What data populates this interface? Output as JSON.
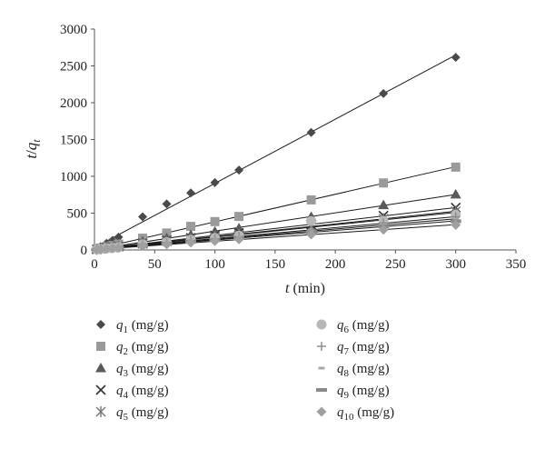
{
  "chart_data": {
    "type": "scatter",
    "title": "",
    "xlabel": {
      "italic": "t",
      "rest": " (min)"
    },
    "ylabel": {
      "main": "t",
      "slash": "/",
      "q": "q",
      "sub": "t"
    },
    "xlim": [
      0,
      350
    ],
    "ylim": [
      0,
      3000
    ],
    "xticks": [
      "0",
      "50",
      "100",
      "150",
      "200",
      "250",
      "300",
      "350"
    ],
    "yticks": [
      "0",
      "500",
      "1000",
      "1500",
      "2000",
      "2500",
      "3000"
    ],
    "grid": false,
    "legend_position": "bottom",
    "x": [
      2,
      5,
      10,
      15,
      20,
      40,
      60,
      80,
      100,
      120,
      180,
      240,
      300
    ],
    "series": [
      {
        "name": "q1 (mg/g)",
        "q": "q",
        "sub": "1",
        "unit": " (mg/g)",
        "marker": "diamond",
        "color": "#4a4a4a",
        "values": [
          18,
          45,
          90,
          130,
          175,
          450,
          625,
          775,
          915,
          1085,
          1595,
          2125,
          2615
        ]
      },
      {
        "name": "q2 (mg/g)",
        "q": "q",
        "sub": "2",
        "unit": " (mg/g)",
        "marker": "square",
        "color": "#9a9a9a",
        "values": [
          12,
          25,
          45,
          60,
          80,
          160,
          230,
          320,
          385,
          455,
          680,
          910,
          1125
        ]
      },
      {
        "name": "q3 (mg/g)",
        "q": "q",
        "sub": "3",
        "unit": " (mg/g)",
        "marker": "triangle",
        "color": "#5a5a5a",
        "values": [
          10,
          20,
          35,
          45,
          55,
          115,
          160,
          205,
          250,
          295,
          450,
          610,
          755
        ]
      },
      {
        "name": "q4 (mg/g)",
        "q": "q",
        "sub": "4",
        "unit": " (mg/g)",
        "marker": "x",
        "color": "#333333",
        "values": [
          8,
          16,
          28,
          38,
          48,
          90,
          130,
          165,
          195,
          230,
          345,
          465,
          575
        ]
      },
      {
        "name": "q5 (mg/g)",
        "q": "q",
        "sub": "5",
        "unit": " (mg/g)",
        "marker": "asterisk",
        "color": "#777777",
        "values": [
          7,
          14,
          25,
          34,
          43,
          82,
          118,
          150,
          178,
          212,
          318,
          425,
          525
        ]
      },
      {
        "name": "q6 (mg/g)",
        "q": "q",
        "sub": "6",
        "unit": " (mg/g)",
        "marker": "circle",
        "color": "#b8b8b8",
        "values": [
          6,
          12,
          22,
          30,
          38,
          75,
          105,
          138,
          163,
          195,
          390,
          395,
          480
        ]
      },
      {
        "name": "q7 (mg/g)",
        "q": "q",
        "sub": "7",
        "unit": " (mg/g)",
        "marker": "plus",
        "color": "#888888",
        "values": [
          6,
          11,
          20,
          28,
          35,
          70,
          98,
          128,
          152,
          182,
          275,
          365,
          450
        ]
      },
      {
        "name": "q8 (mg/g)",
        "q": "q",
        "sub": "8",
        "unit": " (mg/g)",
        "marker": "dash",
        "color": "#a8a8a8",
        "values": [
          5,
          10,
          18,
          26,
          33,
          65,
          92,
          120,
          143,
          170,
          258,
          342,
          420
        ]
      },
      {
        "name": "q9 (mg/g)",
        "q": "q",
        "sub": "9",
        "unit": " (mg/g)",
        "marker": "bar",
        "color": "#8a8a8a",
        "values": [
          5,
          10,
          17,
          24,
          31,
          61,
          86,
          112,
          134,
          160,
          240,
          320,
          390
        ]
      },
      {
        "name": "q10 (mg/g)",
        "q": "q",
        "sub": "10",
        "unit": " (mg/g)",
        "marker": "diamond-light",
        "color": "#a0a0a0",
        "values": [
          4,
          9,
          15,
          21,
          27,
          55,
          75,
          100,
          120,
          143,
          210,
          275,
          340
        ]
      }
    ]
  }
}
